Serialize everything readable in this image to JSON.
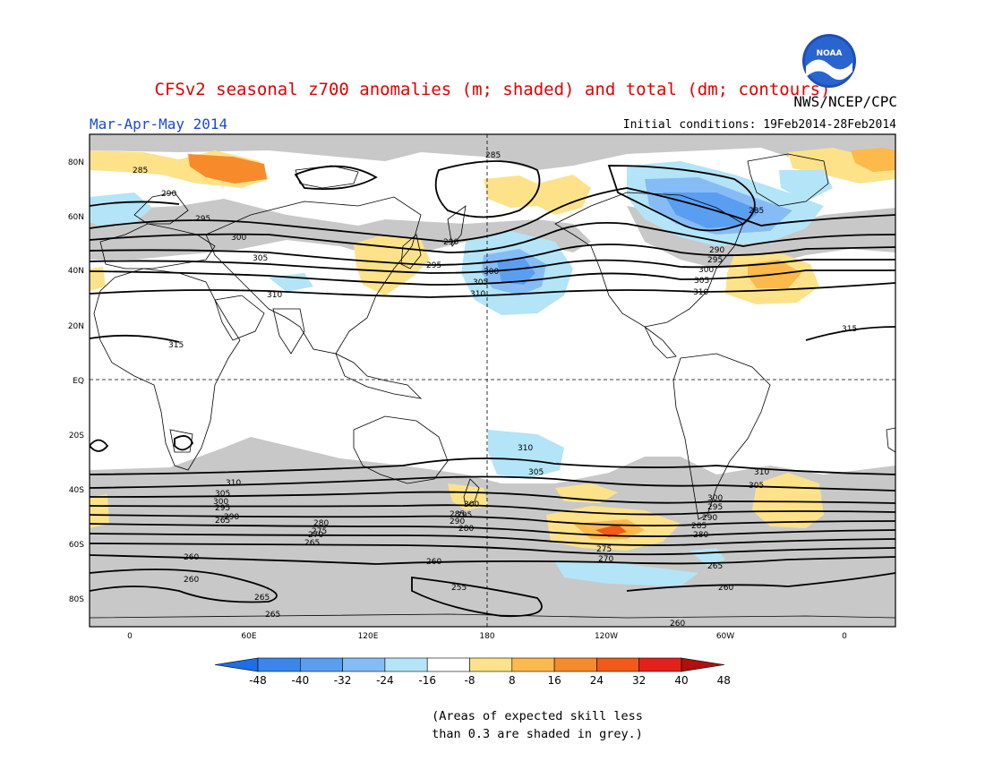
{
  "header": {
    "title": "CFSv2 seasonal z700 anomalies (m; shaded) and total (dm; contours)",
    "agency": "NWS/NCEP/CPC",
    "logo_text": "NOAA",
    "season": "Mar-Apr-May 2014",
    "initial_conditions": "Initial conditions: 19Feb2014-28Feb2014"
  },
  "axes": {
    "lat_labels": [
      "80N",
      "60N",
      "40N",
      "20N",
      "EQ",
      "20S",
      "40S",
      "60S",
      "80S"
    ],
    "lon_labels": [
      "0",
      "60E",
      "120E",
      "180",
      "120W",
      "60W",
      "0"
    ]
  },
  "contour_labels": [
    "285",
    "290",
    "295",
    "300",
    "305",
    "310",
    "315",
    "285",
    "290",
    "295",
    "300",
    "305",
    "310",
    "285",
    "290",
    "295",
    "300",
    "305",
    "310",
    "315",
    "310",
    "305",
    "300",
    "295",
    "290",
    "265",
    "280",
    "275",
    "270",
    "265",
    "260",
    "260",
    "265",
    "265",
    "310",
    "305",
    "300",
    "295",
    "290",
    "285",
    "280",
    "275",
    "270",
    "260",
    "255",
    "300",
    "295",
    "290",
    "285",
    "280",
    "265",
    "260",
    "260",
    "310",
    "305"
  ],
  "colorbar": {
    "labels": [
      "-48",
      "-40",
      "-32",
      "-24",
      "-16",
      "-8",
      "8",
      "16",
      "24",
      "32",
      "40",
      "48"
    ],
    "colors": [
      "#1e6ee6",
      "#3a86ee",
      "#5a9ef2",
      "#86bcf6",
      "#b3e4f7",
      "#ffffff",
      "#fde28a",
      "#fdb94a",
      "#f78a2a",
      "#f25a18",
      "#e2221a",
      "#b01010"
    ]
  },
  "footnote": {
    "line1": "(Areas of expected skill less",
    "line2": "than 0.3 are shaded in grey.)"
  },
  "colors": {
    "title": "#e00000",
    "season": "#1a49d6",
    "low_skill_grey": "#c8c8c8"
  }
}
